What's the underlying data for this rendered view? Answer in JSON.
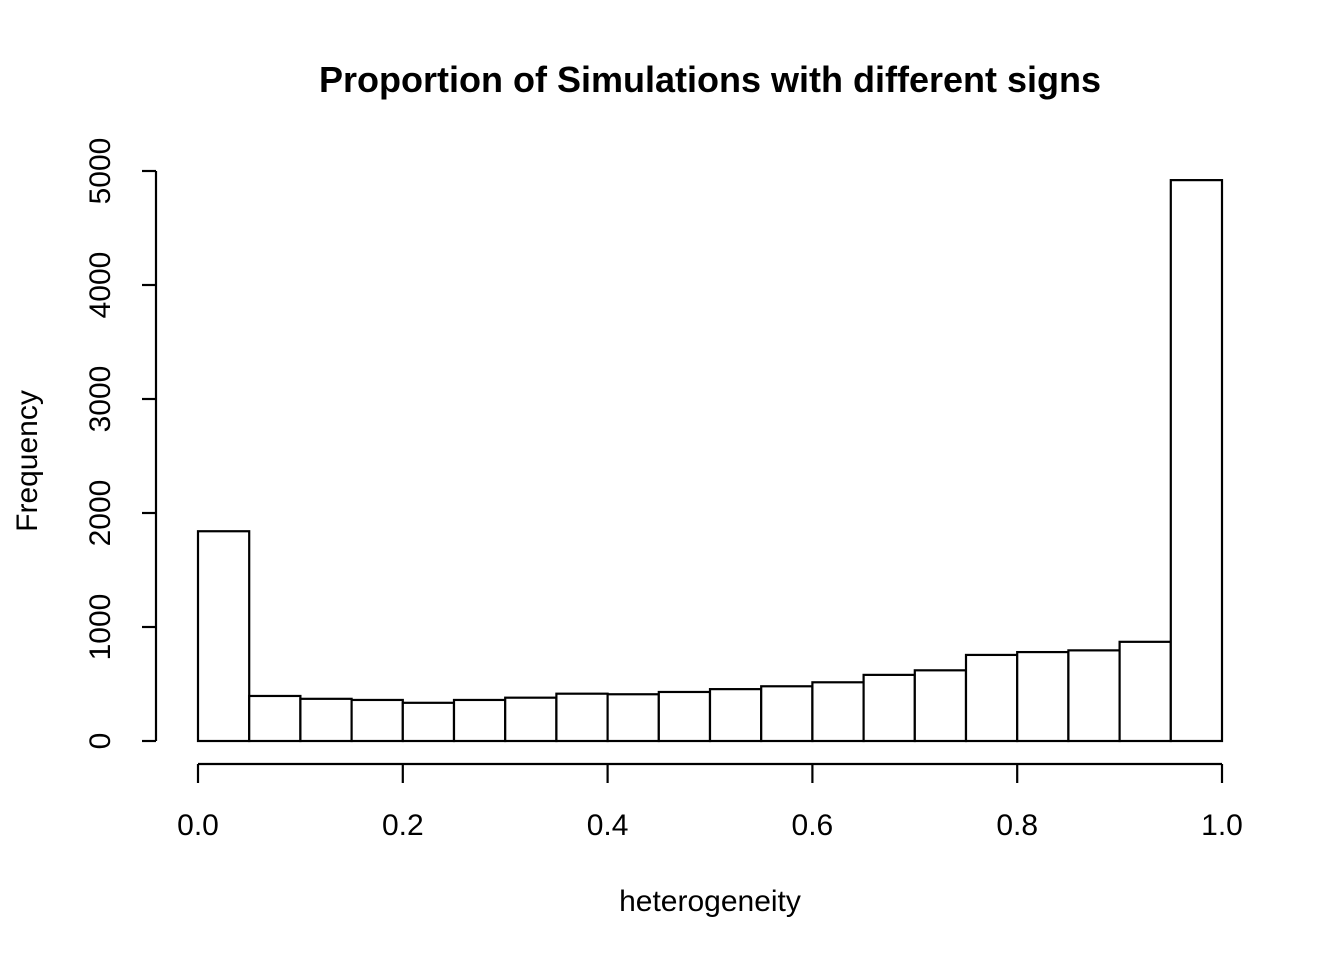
{
  "chart_data": {
    "type": "bar",
    "title": "Proportion of Simulations with different signs",
    "xlabel": "heterogeneity",
    "ylabel": "Frequency",
    "xlim": [
      0,
      1
    ],
    "ylim": [
      0,
      5000
    ],
    "x_ticks": [
      "0.0",
      "0.2",
      "0.4",
      "0.6",
      "0.8",
      "1.0"
    ],
    "x_tick_values": [
      0,
      0.2,
      0.4,
      0.6,
      0.8,
      1.0
    ],
    "y_ticks": [
      "0",
      "1000",
      "2000",
      "3000",
      "4000",
      "5000"
    ],
    "y_tick_values": [
      0,
      1000,
      2000,
      3000,
      4000,
      5000
    ],
    "bin_edges": [
      0,
      0.05,
      0.1,
      0.15,
      0.2,
      0.25,
      0.3,
      0.35,
      0.4,
      0.45,
      0.5,
      0.55,
      0.6,
      0.65,
      0.7,
      0.75,
      0.8,
      0.85,
      0.9,
      0.95,
      1.0
    ],
    "values": [
      1840,
      395,
      370,
      360,
      335,
      360,
      380,
      415,
      410,
      430,
      455,
      480,
      515,
      580,
      620,
      755,
      780,
      795,
      870,
      4920
    ],
    "grid": false,
    "bar_fill": "#ffffff",
    "bar_stroke": "#000000"
  }
}
